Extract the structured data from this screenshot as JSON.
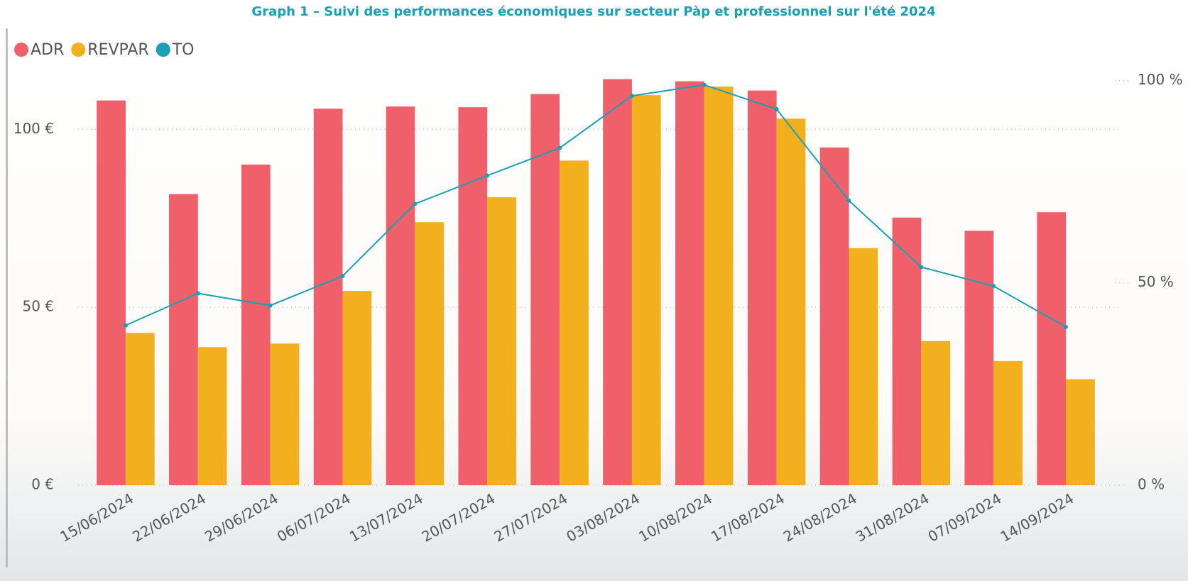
{
  "chart_data": {
    "type": "bar",
    "title": "Graph 1 – Suivi des performances économiques sur secteur Pàp et professionnel sur l'été 2024",
    "categories": [
      "15/06/2024",
      "22/06/2024",
      "29/06/2024",
      "06/07/2024",
      "13/07/2024",
      "20/07/2024",
      "27/07/2024",
      "03/08/2024",
      "10/08/2024",
      "17/08/2024",
      "24/08/2024",
      "31/08/2024",
      "07/09/2024",
      "14/09/2024"
    ],
    "series": [
      {
        "name": "ADR",
        "color": "#f0606a",
        "values": [
          108.1,
          81.8,
          90.1,
          105.8,
          106.4,
          106.2,
          109.9,
          114.1,
          113.5,
          110.9,
          94.9,
          75.2,
          71.5,
          76.7
        ]
      },
      {
        "name": "REVPAR",
        "color": "#f2b01e",
        "values": [
          42.8,
          38.8,
          39.8,
          54.6,
          73.9,
          80.9,
          91.2,
          109.6,
          112.0,
          103.0,
          66.6,
          40.5,
          34.9,
          29.8
        ]
      },
      {
        "name": "TO",
        "color": "#1a9fb5",
        "type": "line",
        "axis": "y2",
        "values": [
          39.5,
          47.4,
          44.4,
          51.7,
          69.5,
          76.5,
          83.3,
          96.2,
          98.9,
          92.9,
          70.3,
          53.9,
          49.2,
          39.1
        ]
      }
    ],
    "ylim": [
      0,
      116
    ],
    "yticks": [
      {
        "value": 0,
        "label": "0 €"
      },
      {
        "value": 50,
        "label": "50 €"
      },
      {
        "value": 100,
        "label": "100 €"
      }
    ],
    "y2lim": [
      0,
      102
    ],
    "y2ticks": [
      {
        "value": 0,
        "label": "0 %"
      },
      {
        "value": 50,
        "label": "50 %"
      },
      {
        "value": 100,
        "label": "100 %"
      }
    ],
    "grid": true,
    "legend": "top-left"
  }
}
